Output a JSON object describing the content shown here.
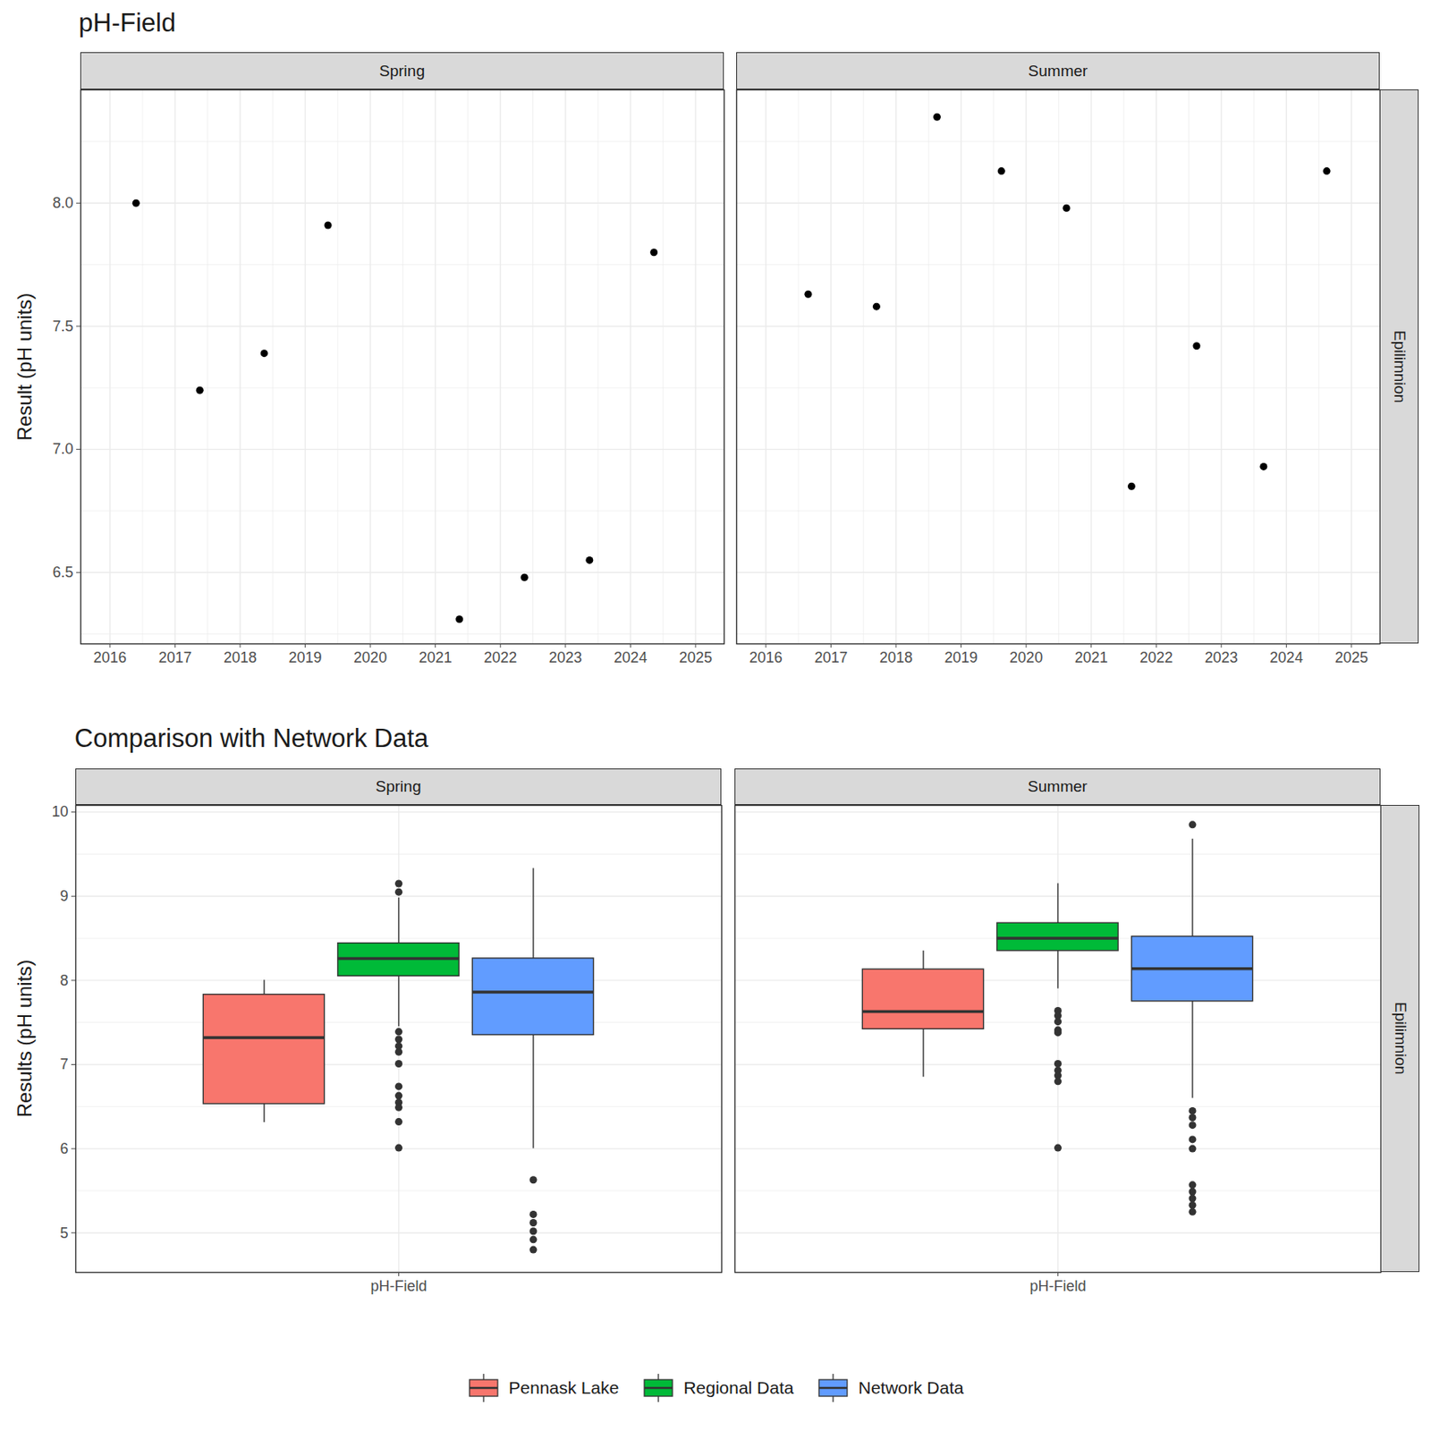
{
  "chart_data": [
    {
      "type": "scatter",
      "title": "pH-Field",
      "y_label": "Result (pH units)",
      "row_facet": "Epilimnion",
      "xlim": [
        2015.55,
        2025.44
      ],
      "xticks": [
        2016,
        2017,
        2018,
        2019,
        2020,
        2021,
        2022,
        2023,
        2024,
        2025
      ],
      "ylim": [
        6.21,
        8.46
      ],
      "yticks": [
        6.5,
        {
          "value": 7,
          "label": "7.0"
        },
        7.5,
        {
          "value": 8,
          "label": "8.0"
        }
      ],
      "grid": true,
      "color": "#000000",
      "marker": "circle",
      "facets": [
        {
          "name": "Spring",
          "x": [
            2016.4,
            2017.38,
            2018.37,
            2019.35,
            2021.37,
            2022.37,
            2023.37,
            2024.36
          ],
          "values": [
            8.0,
            7.24,
            7.39,
            7.91,
            6.31,
            6.48,
            6.55,
            7.8
          ]
        },
        {
          "name": "Summer",
          "x": [
            2016.65,
            2017.7,
            2018.63,
            2019.62,
            2020.62,
            2021.62,
            2022.62,
            2023.65,
            2024.62
          ],
          "values": [
            7.63,
            7.58,
            8.35,
            8.13,
            7.98,
            6.85,
            7.42,
            6.93,
            8.13
          ]
        }
      ]
    },
    {
      "type": "box",
      "title": "Comparison with Network Data",
      "y_label": "Results (pH units)",
      "row_facet": "Epilimnion",
      "categories": [
        "pH-Field"
      ],
      "ylim": [
        4.53,
        10.08
      ],
      "yticks": [
        5,
        6,
        7,
        8,
        9,
        10
      ],
      "grid": true,
      "legend": "bottom",
      "series": [
        {
          "name": "Pennask Lake",
          "color": "#F8766D"
        },
        {
          "name": "Regional Data",
          "color": "#00BA38"
        },
        {
          "name": "Network Data",
          "color": "#619CFF"
        }
      ],
      "facets": [
        {
          "name": "Spring",
          "boxes": [
            {
              "whisker_low": 6.31,
              "q1": 6.53,
              "median": 7.32,
              "q3": 7.83,
              "whisker_high": 8.0,
              "outliers": []
            },
            {
              "whisker_low": 7.45,
              "q1": 8.05,
              "median": 8.26,
              "q3": 8.44,
              "whisker_high": 8.98,
              "outliers": [
                9.15,
                9.05,
                7.39,
                7.3,
                7.22,
                7.15,
                7.01,
                6.74,
                6.63,
                6.55,
                6.49,
                6.32,
                6.01
              ]
            },
            {
              "whisker_low": 6.0,
              "q1": 7.35,
              "median": 7.86,
              "q3": 8.26,
              "whisker_high": 9.33,
              "outliers": [
                5.63,
                5.22,
                5.12,
                5.02,
                4.92,
                4.8
              ]
            }
          ]
        },
        {
          "name": "Summer",
          "boxes": [
            {
              "whisker_low": 6.85,
              "q1": 7.42,
              "median": 7.63,
              "q3": 8.13,
              "whisker_high": 8.35,
              "outliers": []
            },
            {
              "whisker_low": 7.9,
              "q1": 8.35,
              "median": 8.5,
              "q3": 8.68,
              "whisker_high": 9.15,
              "outliers": [
                7.64,
                7.58,
                7.51,
                7.41,
                7.38,
                7.01,
                6.93,
                6.87,
                6.8,
                6.01
              ]
            },
            {
              "whisker_low": 6.6,
              "q1": 7.75,
              "median": 8.14,
              "q3": 8.52,
              "whisker_high": 9.68,
              "outliers": [
                9.85,
                6.45,
                6.37,
                6.28,
                6.11,
                6.0,
                5.57,
                5.49,
                5.41,
                5.33,
                5.25
              ]
            }
          ]
        }
      ]
    }
  ]
}
